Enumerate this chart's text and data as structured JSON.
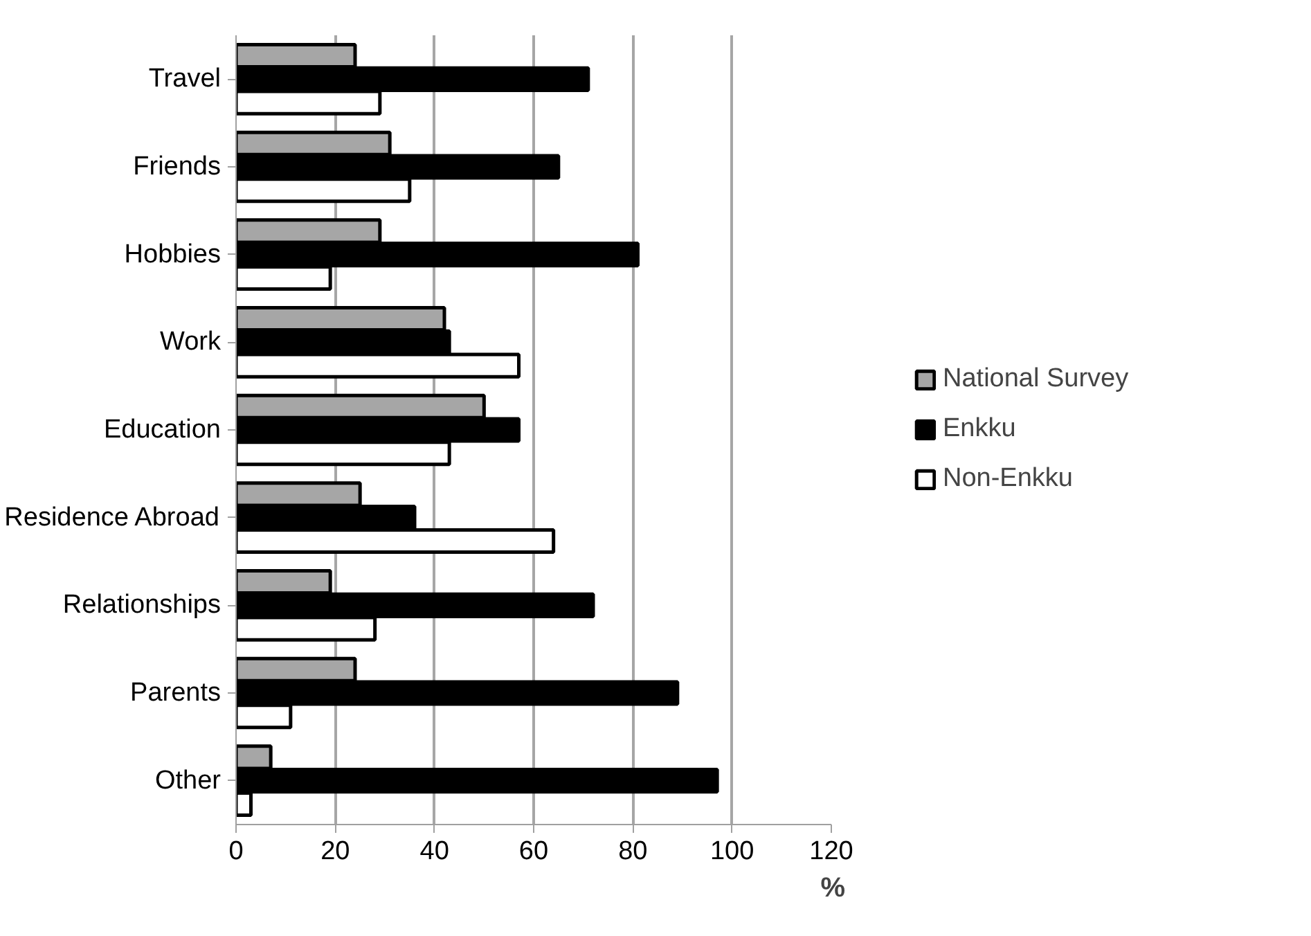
{
  "chart_data": {
    "type": "bar",
    "orientation": "horizontal",
    "xlabel": "%",
    "categories": [
      "Travel",
      "Friends",
      "Hobbies",
      "Work",
      "Education",
      "Residence Abroad",
      "Relationships",
      "Parents",
      "Other"
    ],
    "series": [
      {
        "name": "National Survey",
        "color": "#a6a6a6",
        "values": [
          24,
          31,
          29,
          42,
          50,
          25,
          19,
          24,
          7
        ]
      },
      {
        "name": "Enkku",
        "color": "#000000",
        "values": [
          71,
          65,
          81,
          43,
          57,
          36,
          72,
          89,
          97
        ]
      },
      {
        "name": "Non-Enkku",
        "color": "#ffffff",
        "values": [
          29,
          35,
          19,
          57,
          43,
          64,
          28,
          11,
          3
        ]
      }
    ],
    "xlim": [
      0,
      120
    ],
    "xticks": [
      0,
      20,
      40,
      60,
      80,
      100,
      120
    ],
    "grid": "x",
    "legend": "right"
  }
}
